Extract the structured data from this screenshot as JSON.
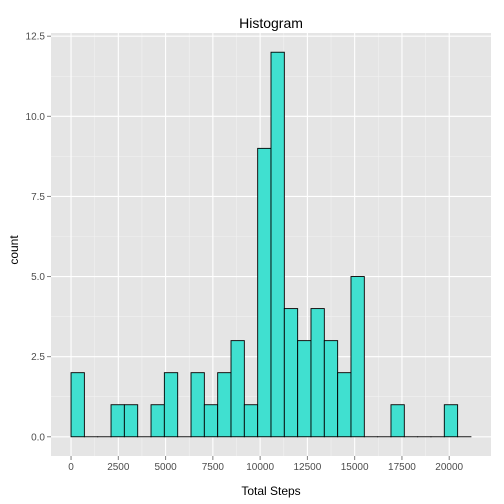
{
  "chart_data": {
    "type": "bar",
    "title": "Histogram",
    "xlabel": "Total Steps",
    "ylabel": "count",
    "bin_width": 705.0,
    "x": [
      0,
      705,
      1410,
      2115,
      2820,
      3525,
      4230,
      4935,
      5640,
      6345,
      7050,
      7755,
      8460,
      9165,
      9870,
      10575,
      11280,
      11985,
      12690,
      13395,
      14100,
      14805,
      15510,
      16215,
      16920,
      17625,
      18330,
      19035,
      19740,
      20445
    ],
    "values": [
      2,
      0,
      0,
      1,
      1,
      0,
      1,
      2,
      0,
      2,
      1,
      2,
      3,
      1,
      9,
      12,
      4,
      3,
      4,
      3,
      2,
      5,
      0,
      0,
      1,
      0,
      0,
      0,
      1,
      0
    ],
    "xlim": [
      -1060,
      22210
    ],
    "ylim": [
      -0.6,
      12.6
    ],
    "x_ticks": [
      0,
      2500,
      5000,
      7500,
      10000,
      12500,
      15000,
      17500,
      20000
    ],
    "y_ticks": [
      0,
      2.5,
      5,
      7.5,
      10,
      12.5
    ],
    "x_tick_labels": [
      "0",
      "2500",
      "5000",
      "7500",
      "10000",
      "12500",
      "15000",
      "17500",
      "20000"
    ],
    "y_tick_labels": [
      "0.0",
      "2.5",
      "5.0",
      "7.5",
      "10.0",
      "12.5"
    ],
    "grid": true,
    "colors": {
      "fill": "#40e0d0",
      "outline": "#000000",
      "panel": "#e5e5e5",
      "grid_major": "#ffffff",
      "grid_minor": "#f2f2f2"
    }
  }
}
